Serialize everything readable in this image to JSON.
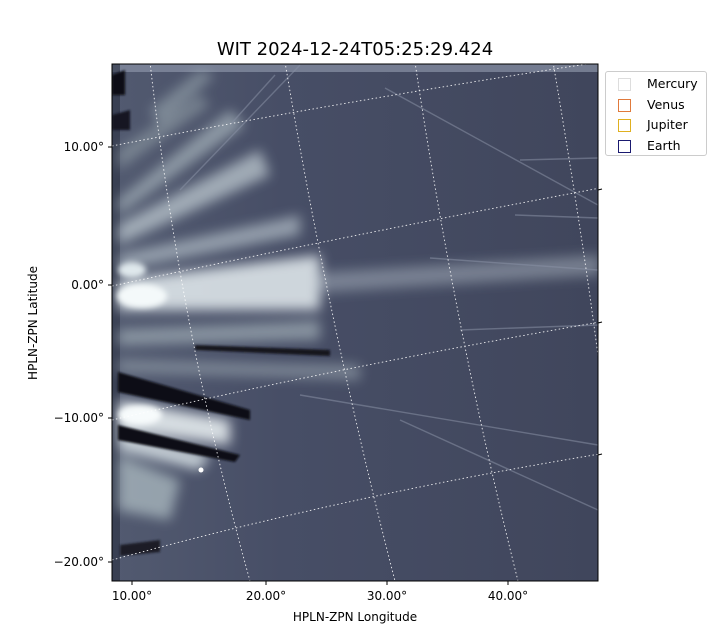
{
  "title": "WIT 2024-12-24T05:25:29.424",
  "x_axis": {
    "label": "HPLN-ZPN Longitude",
    "ticks": [
      "10.00°",
      "20.00°",
      "30.00°",
      "40.00°"
    ]
  },
  "y_axis": {
    "label": "HPLN-ZPN Latitude",
    "ticks": [
      "10.00°",
      "0.00°",
      "−10.00°",
      "−20.00°"
    ]
  },
  "legend": [
    {
      "label": "Mercury",
      "color": "#dddddd"
    },
    {
      "label": "Venus",
      "color": "#e07a3c"
    },
    {
      "label": "Jupiter",
      "color": "#e0b020"
    },
    {
      "label": "Earth",
      "color": "#1a1a70"
    }
  ],
  "colors": {
    "background_image": "#424a62",
    "streamer_bright": "#dfe8ec",
    "grid": "#ffffff"
  }
}
